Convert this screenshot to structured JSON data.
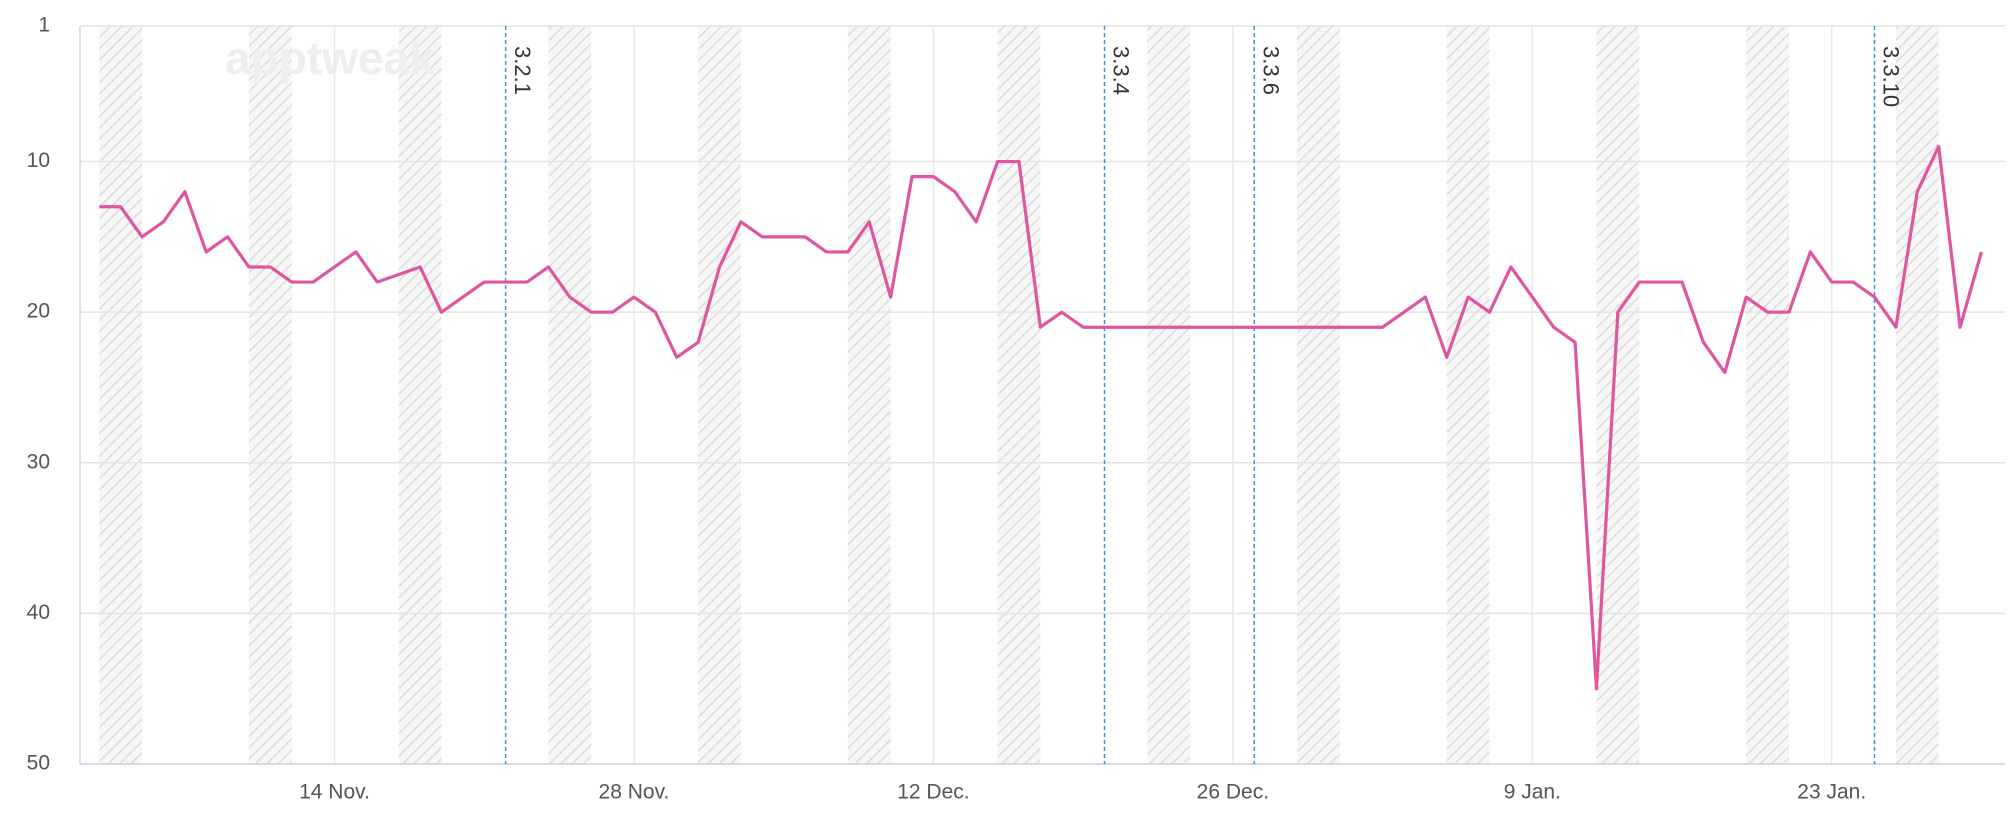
{
  "chart_data": {
    "type": "line",
    "watermark": "apptweak",
    "x": [
      0,
      1,
      2,
      3,
      4,
      5,
      6,
      7,
      8,
      9,
      10,
      11,
      12,
      13,
      14,
      15,
      16,
      17,
      18,
      19,
      20,
      21,
      22,
      23,
      24,
      25,
      26,
      27,
      28,
      29,
      30,
      31,
      32,
      33,
      34,
      35,
      36,
      37,
      38,
      39,
      40,
      41,
      42,
      43,
      44,
      45,
      46,
      47,
      48,
      49,
      50,
      51,
      52,
      53,
      54,
      55,
      56,
      57,
      58,
      59,
      60,
      61,
      62,
      63,
      64,
      65,
      66,
      67,
      68,
      69,
      70,
      71,
      72,
      73,
      74,
      75,
      76,
      77,
      78,
      79,
      80,
      81,
      82,
      83,
      84,
      85,
      86,
      87,
      88
    ],
    "series": [
      {
        "color": "#e0559f",
        "values": [
          13,
          13,
          15,
          14,
          12,
          16,
          15,
          17,
          17,
          18,
          18,
          17,
          16,
          18,
          17.5,
          17,
          20,
          19,
          18,
          18,
          18,
          17,
          19,
          20,
          20,
          19,
          20,
          23,
          22,
          17,
          14,
          15,
          15,
          15,
          16,
          16,
          14,
          19,
          11,
          11,
          12,
          14,
          10,
          10,
          21,
          20,
          21,
          21,
          21,
          21,
          21,
          21,
          21,
          21,
          21,
          21,
          21,
          21,
          21,
          21,
          21,
          20,
          19,
          23,
          19,
          20,
          17,
          19,
          21,
          22,
          45,
          20,
          18,
          18,
          18,
          22,
          24,
          19,
          20,
          20,
          16,
          18,
          18,
          19,
          21,
          12,
          9,
          21,
          16
        ]
      }
    ],
    "xlim": [
      -0.9,
      89.1
    ],
    "xticks": [
      {
        "value": 11,
        "label": "14 Nov."
      },
      {
        "value": 25,
        "label": "28 Nov."
      },
      {
        "value": 39,
        "label": "12 Dec."
      },
      {
        "value": 53,
        "label": "26 Dec."
      },
      {
        "value": 67,
        "label": "9 Jan."
      },
      {
        "value": 81,
        "label": "23 Jan."
      }
    ],
    "ylim": [
      1,
      50
    ],
    "y_reversed": true,
    "yticks": [
      1,
      10,
      20,
      30,
      40,
      50
    ],
    "grid": true,
    "annotations": [
      {
        "x": 19,
        "label": "3.2.1"
      },
      {
        "x": 47,
        "label": "3.3.4"
      },
      {
        "x": 54,
        "label": "3.3.6"
      },
      {
        "x": 83,
        "label": "3.3.10"
      }
    ]
  }
}
